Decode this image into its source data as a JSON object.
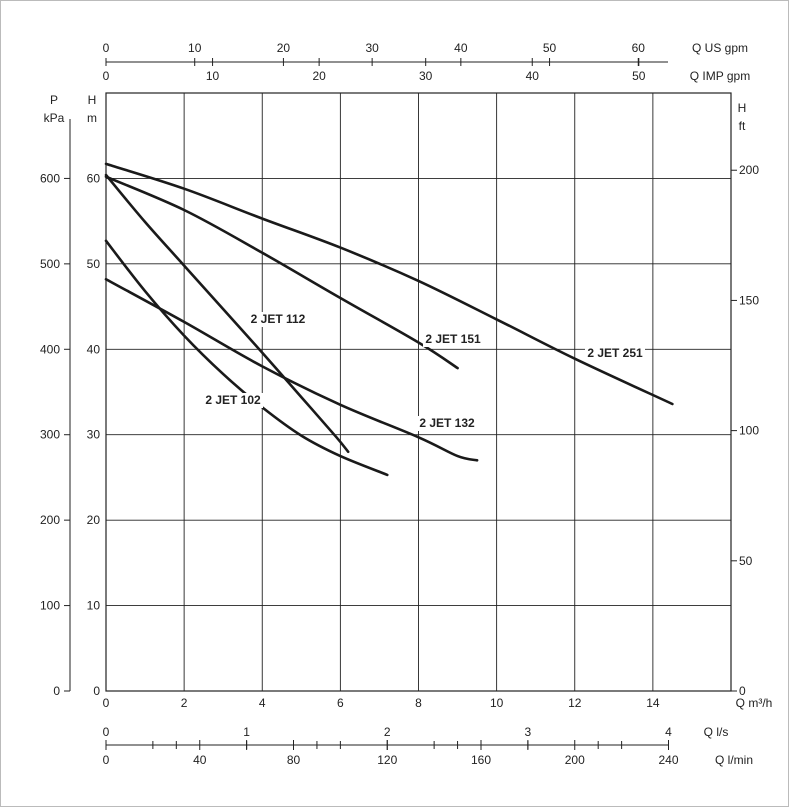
{
  "chart_data": {
    "type": "line",
    "title": "",
    "xlabel": "Q m³/h",
    "ylabel": "H m",
    "xlim": [
      0,
      16
    ],
    "ylim": [
      0,
      70
    ],
    "grid": true,
    "x_ticks": [
      0,
      2,
      4,
      6,
      8,
      10,
      12,
      14
    ],
    "y_ticks": [
      0,
      10,
      20,
      30,
      40,
      50,
      60
    ],
    "x_unit": "Q m³/h",
    "y_unit_top": "H",
    "y_unit_bottom": "m",
    "series": [
      {
        "name": "2 JET 102",
        "points": [
          [
            0,
            52.7
          ],
          [
            1,
            46.8
          ],
          [
            2,
            41.6
          ],
          [
            3,
            37.1
          ],
          [
            4,
            33.2
          ],
          [
            5,
            29.9
          ],
          [
            6,
            27.5
          ],
          [
            7.2,
            25.3
          ]
        ]
      },
      {
        "name": "2 JET 112",
        "points": [
          [
            0,
            60.4
          ],
          [
            1,
            54.9
          ],
          [
            2,
            49.8
          ],
          [
            3,
            44.7
          ],
          [
            4,
            39.6
          ],
          [
            5,
            34.4
          ],
          [
            5.9,
            29.7
          ],
          [
            6.2,
            28.0
          ]
        ]
      },
      {
        "name": "2 JET 132",
        "points": [
          [
            0,
            48.2
          ],
          [
            2,
            43.2
          ],
          [
            4,
            38.0
          ],
          [
            6,
            33.5
          ],
          [
            8,
            29.7
          ],
          [
            9,
            27.5
          ],
          [
            9.5,
            27.0
          ]
        ]
      },
      {
        "name": "2 JET 151",
        "points": [
          [
            0,
            60.2
          ],
          [
            2,
            56.3
          ],
          [
            4,
            51.3
          ],
          [
            6,
            46.0
          ],
          [
            8,
            40.8
          ],
          [
            9,
            37.8
          ]
        ]
      },
      {
        "name": "2 JET 251",
        "points": [
          [
            0,
            61.7
          ],
          [
            2,
            58.8
          ],
          [
            4,
            55.3
          ],
          [
            6,
            51.9
          ],
          [
            8,
            48.0
          ],
          [
            10,
            43.5
          ],
          [
            12,
            38.9
          ],
          [
            14.5,
            33.6
          ]
        ]
      }
    ],
    "secondary_axes": {
      "kpa": {
        "label_top": "P",
        "label_bottom": "kPa",
        "ticks": [
          0,
          100,
          200,
          300,
          400,
          500,
          600
        ],
        "per_unit": 0.1
      },
      "ft": {
        "label_top": "H",
        "label_bottom": "ft",
        "ticks": [
          0,
          50,
          100,
          150,
          200
        ],
        "per_unit": 0.3048
      },
      "us_gpm": {
        "label": "Q US gpm",
        "ticks": [
          0,
          10,
          20,
          30,
          40,
          50,
          60
        ],
        "per_unit": 0.2271
      },
      "imp_gpm": {
        "label": "Q IMP gpm",
        "ticks": [
          0,
          10,
          20,
          30,
          40,
          50
        ],
        "per_unit": 0.2728
      },
      "ls": {
        "label": "Q l/s",
        "ticks": [
          0,
          1,
          2,
          3,
          4
        ],
        "per_unit": 3.6
      },
      "lmin": {
        "label": "Q l/min",
        "ticks": [
          0,
          40,
          80,
          120,
          160,
          200,
          240
        ],
        "per_unit": 0.06
      }
    }
  }
}
